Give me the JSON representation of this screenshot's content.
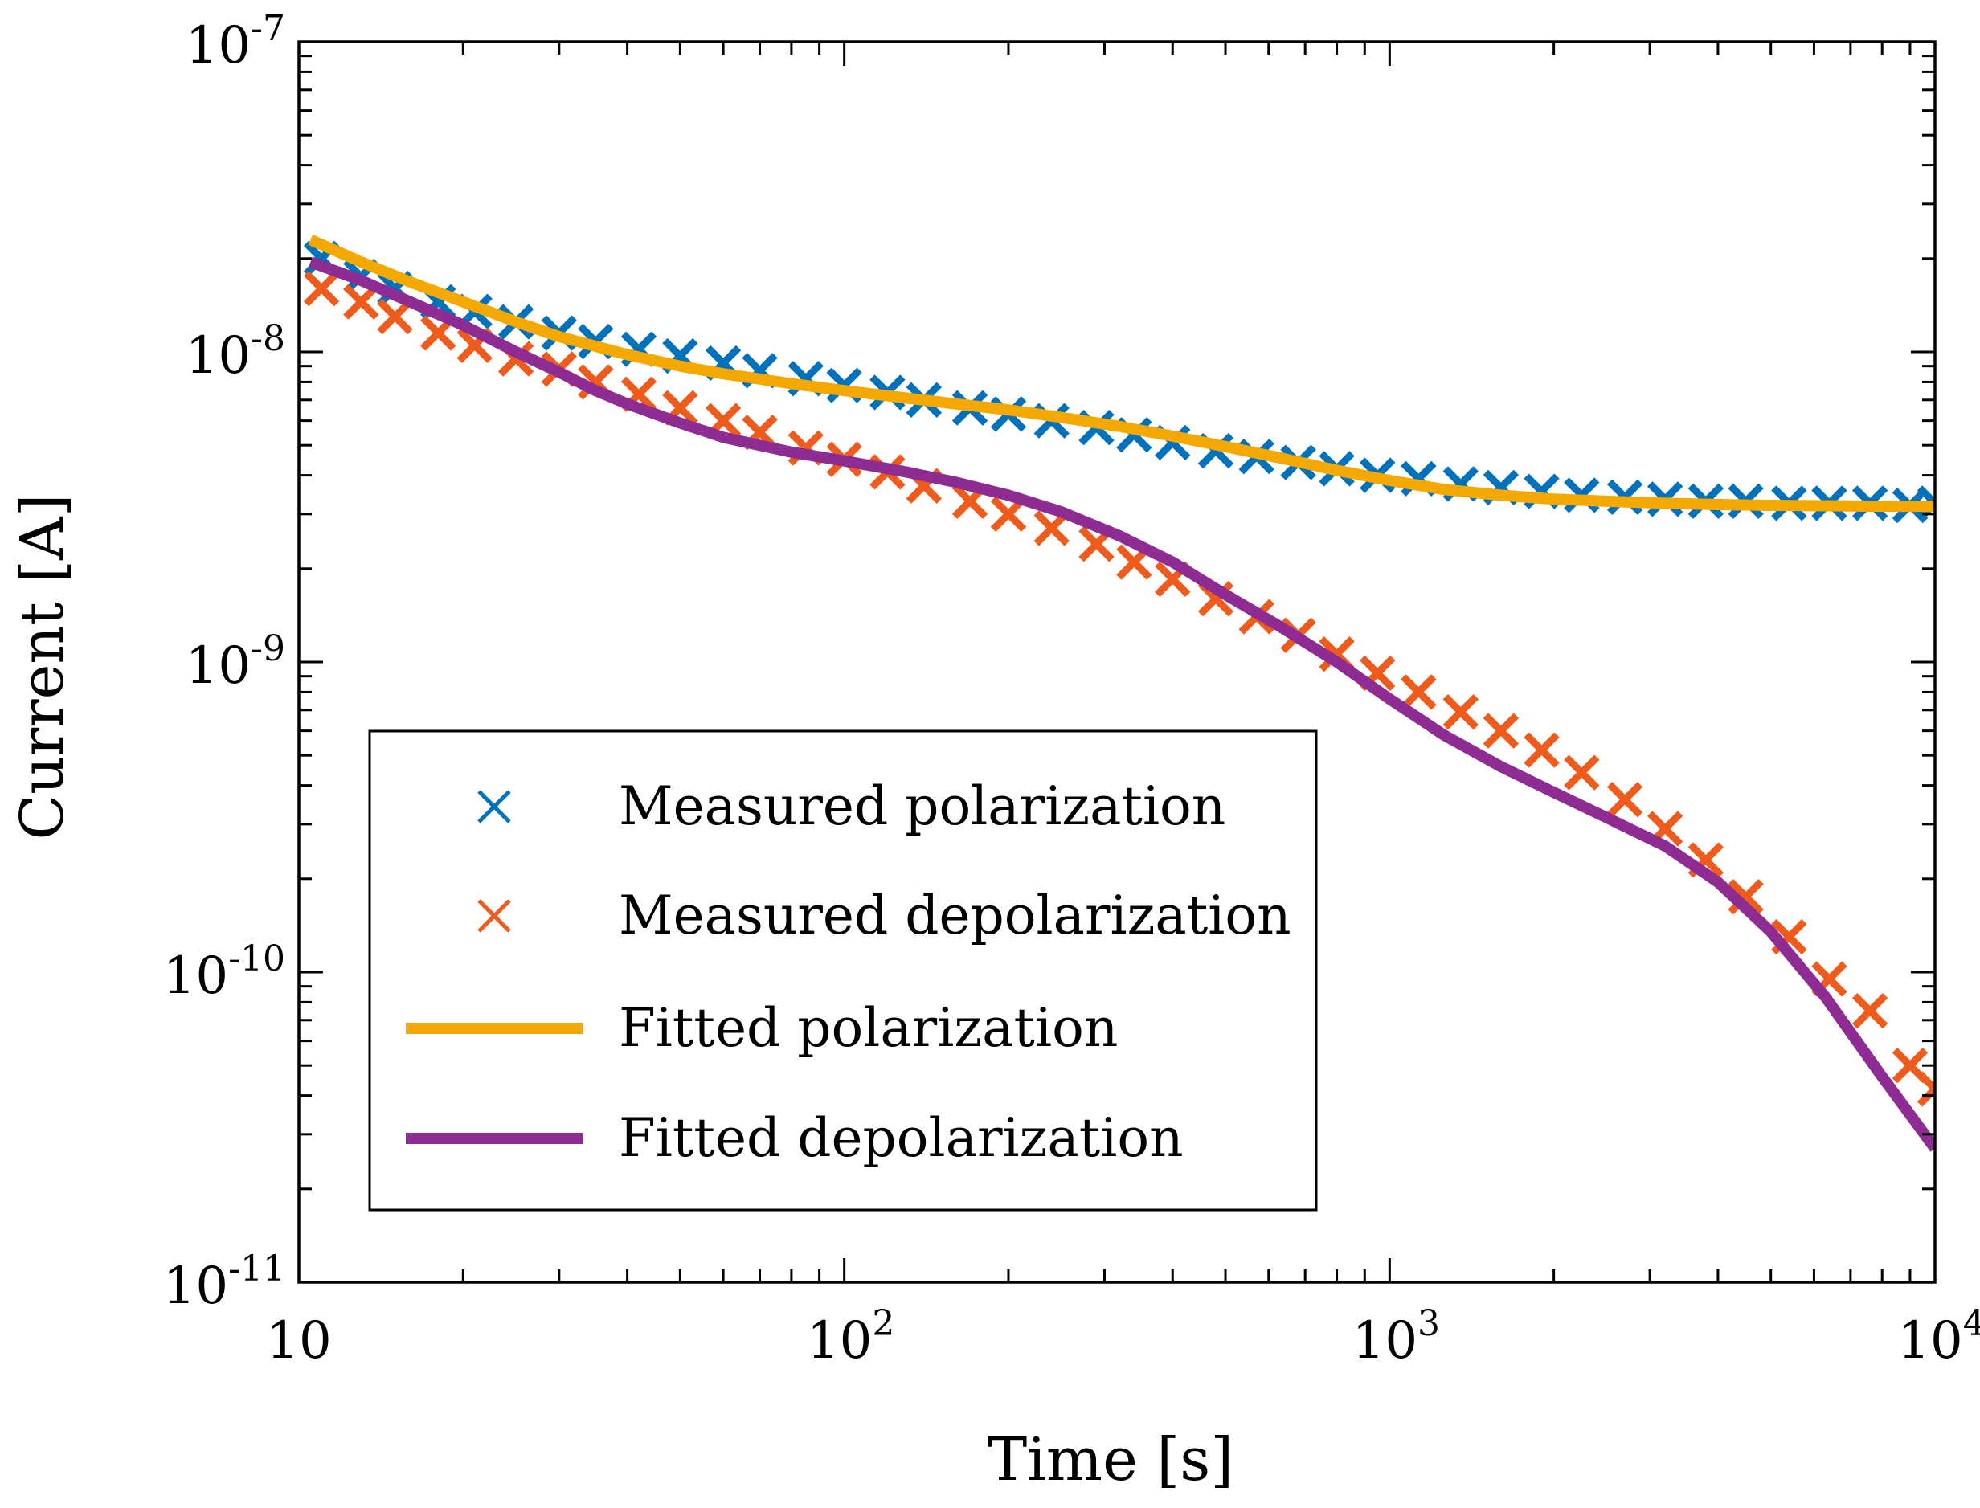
{
  "chart_data": {
    "type": "line",
    "xscale": "log",
    "yscale": "log",
    "xlabel": "Time [s]",
    "ylabel": "Current [A]",
    "xlim": [
      10,
      10000
    ],
    "ylim": [
      1e-11,
      1e-07
    ],
    "grid": false,
    "legend_position": "lower-left",
    "x_ticks": [
      {
        "value": 10,
        "base": "10",
        "exp": ""
      },
      {
        "value": 100,
        "base": "10",
        "exp": "2"
      },
      {
        "value": 1000,
        "base": "10",
        "exp": "3"
      },
      {
        "value": 10000,
        "base": "10",
        "exp": "4"
      }
    ],
    "y_ticks": [
      {
        "value": 1e-07,
        "base": "10",
        "exp": "-7"
      },
      {
        "value": 1e-08,
        "base": "10",
        "exp": "-8"
      },
      {
        "value": 1e-09,
        "base": "10",
        "exp": "-9"
      },
      {
        "value": 1e-10,
        "base": "10",
        "exp": "-10"
      },
      {
        "value": 1e-11,
        "base": "10",
        "exp": "-11"
      }
    ],
    "series": [
      {
        "name": "Measured polarization",
        "kind": "marker",
        "marker": "x",
        "color": "#0072BD",
        "points": [
          [
            11,
            2e-08
          ],
          [
            13,
            1.75e-08
          ],
          [
            15,
            1.6e-08
          ],
          [
            18,
            1.45e-08
          ],
          [
            21,
            1.35e-08
          ],
          [
            25,
            1.25e-08
          ],
          [
            30,
            1.15e-08
          ],
          [
            35,
            1.08e-08
          ],
          [
            42,
            1.02e-08
          ],
          [
            50,
            9.7e-09
          ],
          [
            60,
            9.2e-09
          ],
          [
            70,
            8.7e-09
          ],
          [
            85,
            8.2e-09
          ],
          [
            100,
            7.8e-09
          ],
          [
            120,
            7.4e-09
          ],
          [
            140,
            7e-09
          ],
          [
            170,
            6.6e-09
          ],
          [
            200,
            6.3e-09
          ],
          [
            240,
            6e-09
          ],
          [
            290,
            5.7e-09
          ],
          [
            340,
            5.4e-09
          ],
          [
            400,
            5.1e-09
          ],
          [
            480,
            4.8e-09
          ],
          [
            570,
            4.6e-09
          ],
          [
            680,
            4.4e-09
          ],
          [
            800,
            4.2e-09
          ],
          [
            950,
            4e-09
          ],
          [
            1130,
            3.9e-09
          ],
          [
            1350,
            3.75e-09
          ],
          [
            1600,
            3.65e-09
          ],
          [
            1900,
            3.55e-09
          ],
          [
            2250,
            3.45e-09
          ],
          [
            2700,
            3.4e-09
          ],
          [
            3200,
            3.35e-09
          ],
          [
            3800,
            3.3e-09
          ],
          [
            4500,
            3.3e-09
          ],
          [
            5400,
            3.25e-09
          ],
          [
            6400,
            3.25e-09
          ],
          [
            7600,
            3.25e-09
          ],
          [
            9000,
            3.2e-09
          ],
          [
            10000,
            3.25e-09
          ]
        ]
      },
      {
        "name": "Measured depolarization",
        "kind": "marker",
        "marker": "x",
        "color": "#F05A1A",
        "points": [
          [
            11,
            1.6e-08
          ],
          [
            13,
            1.45e-08
          ],
          [
            15,
            1.3e-08
          ],
          [
            18,
            1.15e-08
          ],
          [
            21,
            1.05e-08
          ],
          [
            25,
            9.5e-09
          ],
          [
            30,
            8.8e-09
          ],
          [
            35,
            8e-09
          ],
          [
            42,
            7.3e-09
          ],
          [
            50,
            6.6e-09
          ],
          [
            60,
            6e-09
          ],
          [
            70,
            5.5e-09
          ],
          [
            85,
            4.9e-09
          ],
          [
            100,
            4.5e-09
          ],
          [
            120,
            4.1e-09
          ],
          [
            140,
            3.7e-09
          ],
          [
            170,
            3.3e-09
          ],
          [
            200,
            3e-09
          ],
          [
            240,
            2.7e-09
          ],
          [
            290,
            2.4e-09
          ],
          [
            340,
            2.1e-09
          ],
          [
            400,
            1.85e-09
          ],
          [
            480,
            1.6e-09
          ],
          [
            570,
            1.4e-09
          ],
          [
            680,
            1.22e-09
          ],
          [
            800,
            1.06e-09
          ],
          [
            950,
            9.2e-10
          ],
          [
            1130,
            8e-10
          ],
          [
            1350,
            6.9e-10
          ],
          [
            1600,
            6e-10
          ],
          [
            1900,
            5.2e-10
          ],
          [
            2250,
            4.4e-10
          ],
          [
            2700,
            3.6e-10
          ],
          [
            3200,
            2.9e-10
          ],
          [
            3800,
            2.3e-10
          ],
          [
            4500,
            1.75e-10
          ],
          [
            5400,
            1.3e-10
          ],
          [
            6400,
            9.5e-11
          ],
          [
            7600,
            7.5e-11
          ],
          [
            9000,
            5e-11
          ],
          [
            10000,
            4.2e-11
          ]
        ]
      },
      {
        "name": "Fitted polarization",
        "kind": "line",
        "color": "#F5A800",
        "points": [
          [
            10.5,
            2.3e-08
          ],
          [
            13,
            1.95e-08
          ],
          [
            16,
            1.68e-08
          ],
          [
            20,
            1.45e-08
          ],
          [
            25,
            1.25e-08
          ],
          [
            30,
            1.12e-08
          ],
          [
            40,
            9.8e-09
          ],
          [
            50,
            9e-09
          ],
          [
            60,
            8.5e-09
          ],
          [
            80,
            7.9e-09
          ],
          [
            100,
            7.5e-09
          ],
          [
            130,
            7.1e-09
          ],
          [
            160,
            6.8e-09
          ],
          [
            200,
            6.5e-09
          ],
          [
            250,
            6.15e-09
          ],
          [
            320,
            5.75e-09
          ],
          [
            400,
            5.35e-09
          ],
          [
            500,
            4.95e-09
          ],
          [
            630,
            4.55e-09
          ],
          [
            800,
            4.15e-09
          ],
          [
            1000,
            3.85e-09
          ],
          [
            1260,
            3.6e-09
          ],
          [
            1600,
            3.45e-09
          ],
          [
            2000,
            3.35e-09
          ],
          [
            2500,
            3.3e-09
          ],
          [
            3200,
            3.25e-09
          ],
          [
            4000,
            3.22e-09
          ],
          [
            5000,
            3.2e-09
          ],
          [
            6300,
            3.19e-09
          ],
          [
            8000,
            3.18e-09
          ],
          [
            10000,
            3.18e-09
          ]
        ]
      },
      {
        "name": "Fitted depolarization",
        "kind": "line",
        "color": "#8E2C93",
        "points": [
          [
            10.5,
            1.95e-08
          ],
          [
            13,
            1.7e-08
          ],
          [
            16,
            1.45e-08
          ],
          [
            20,
            1.22e-08
          ],
          [
            25,
            1e-08
          ],
          [
            30,
            8.6e-09
          ],
          [
            35,
            7.5e-09
          ],
          [
            40,
            6.8e-09
          ],
          [
            50,
            5.9e-09
          ],
          [
            60,
            5.3e-09
          ],
          [
            80,
            4.75e-09
          ],
          [
            100,
            4.45e-09
          ],
          [
            130,
            4.1e-09
          ],
          [
            160,
            3.8e-09
          ],
          [
            200,
            3.45e-09
          ],
          [
            250,
            3.05e-09
          ],
          [
            320,
            2.55e-09
          ],
          [
            400,
            2.1e-09
          ],
          [
            500,
            1.65e-09
          ],
          [
            630,
            1.3e-09
          ],
          [
            800,
            1e-09
          ],
          [
            1000,
            7.6e-10
          ],
          [
            1260,
            5.8e-10
          ],
          [
            1600,
            4.6e-10
          ],
          [
            2000,
            3.8e-10
          ],
          [
            2500,
            3.15e-10
          ],
          [
            3200,
            2.55e-10
          ],
          [
            4000,
            1.95e-10
          ],
          [
            5000,
            1.35e-10
          ],
          [
            6300,
            8.3e-11
          ],
          [
            8000,
            4.6e-11
          ],
          [
            10000,
            2.7e-11
          ]
        ]
      }
    ]
  }
}
